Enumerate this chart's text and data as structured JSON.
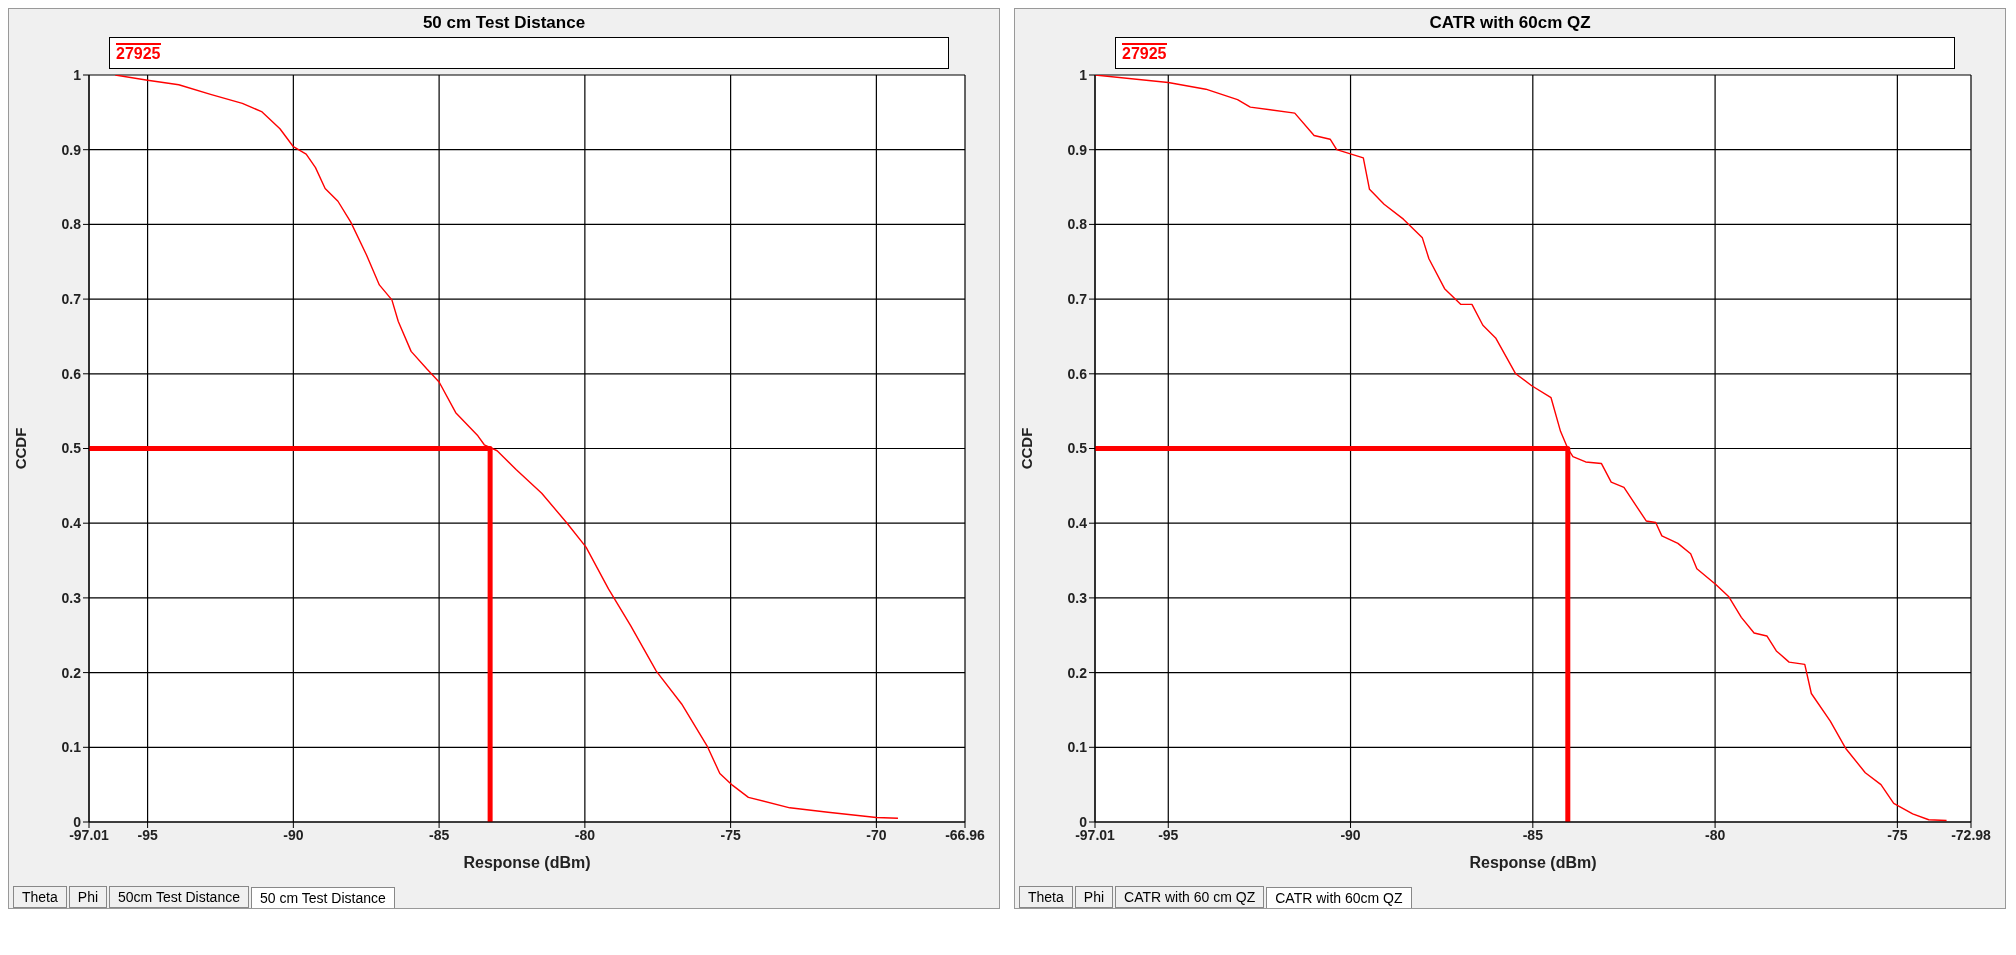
{
  "chart_data": [
    {
      "type": "line",
      "title": "50 cm Test Distance",
      "xlabel": "Response (dBm)",
      "ylabel": "CCDF",
      "xlim": [
        -97.01,
        -66.96
      ],
      "xticks": [
        -97.01,
        -95,
        -90,
        -85,
        -80,
        -75,
        -70,
        -66.96
      ],
      "ylim": [
        0,
        1
      ],
      "yticks": [
        0,
        0.1,
        0.2,
        0.3,
        0.4,
        0.5,
        0.6,
        0.7,
        0.8,
        0.9,
        1
      ],
      "grid": true,
      "legend": "top",
      "series": [
        {
          "name": "27925",
          "color": "#ff0000",
          "x": [
            -96.11,
            -95,
            -93.93,
            -92.84,
            -91.75,
            -91.09,
            -90.46,
            -90,
            -89.56,
            -89.24,
            -88.91,
            -88.47,
            -88.03,
            -87.49,
            -87.05,
            -86.62,
            -86.4,
            -85.96,
            -85.41,
            -85,
            -84.43,
            -83.67,
            -83.45,
            -83.01,
            -82.36,
            -81.48,
            -80.61,
            -79.96,
            -79.19,
            -78.43,
            -77.55,
            -76.68,
            -75.81,
            -75.37,
            -74.93,
            -74.39,
            -72.97,
            -71.66,
            -70,
            -69.26
          ],
          "values": [
            1,
            0.993,
            0.987,
            0.974,
            0.962,
            0.951,
            0.928,
            0.904,
            0.894,
            0.876,
            0.848,
            0.831,
            0.803,
            0.759,
            0.719,
            0.699,
            0.67,
            0.63,
            0.606,
            0.589,
            0.548,
            0.517,
            0.505,
            0.497,
            0.472,
            0.44,
            0.4,
            0.368,
            0.312,
            0.263,
            0.202,
            0.158,
            0.102,
            0.065,
            0.049,
            0.033,
            0.019,
            0.013,
            0.006,
            0.005
          ]
        },
        {
          "color": "#ff0000",
          "x": [
            -97.01,
            -83.25,
            -83.25
          ],
          "values": [
            0.5,
            0.5,
            0
          ]
        }
      ],
      "annotations": [
        "Theta",
        "Phi",
        "50cm Test Distance",
        "50 cm Test Distance"
      ]
    },
    {
      "type": "line",
      "title": "CATR with 60cm QZ",
      "xlabel": "Response (dBm)",
      "ylabel": "CCDF",
      "xlim": [
        -97.01,
        -72.98
      ],
      "xticks": [
        -97.01,
        -95,
        -90,
        -85,
        -80,
        -75,
        -72.98
      ],
      "ylim": [
        0,
        1
      ],
      "yticks": [
        0,
        0.1,
        0.2,
        0.3,
        0.4,
        0.5,
        0.6,
        0.7,
        0.8,
        0.9,
        1
      ],
      "grid": true,
      "legend": "top",
      "series": [
        {
          "name": "27925",
          "color": "#ff0000",
          "x": [
            -97.01,
            -95,
            -93.97,
            -93.1,
            -92.75,
            -91.53,
            -91,
            -90.56,
            -90.38,
            -89.65,
            -89.48,
            -89.08,
            -88.55,
            -88.03,
            -87.85,
            -87.42,
            -86.98,
            -86.67,
            -86.37,
            -86.02,
            -85.47,
            -85.03,
            -84.5,
            -84.24,
            -84.04,
            -83.9,
            -83.55,
            -83.12,
            -82.85,
            -82.5,
            -81.89,
            -81.63,
            -81.46,
            -81.02,
            -80.67,
            -80.5,
            -79.98,
            -79.63,
            -79.28,
            -78.93,
            -78.58,
            -78.32,
            -77.97,
            -77.54,
            -77.36,
            -76.84,
            -76.41,
            -75.88,
            -75.45,
            -75.1,
            -74.58,
            -74.14,
            -73.65
          ],
          "values": [
            1,
            0.99,
            0.981,
            0.967,
            0.957,
            0.949,
            0.919,
            0.914,
            0.9,
            0.889,
            0.847,
            0.827,
            0.807,
            0.782,
            0.754,
            0.714,
            0.693,
            0.693,
            0.665,
            0.648,
            0.6,
            0.584,
            0.568,
            0.523,
            0.5,
            0.489,
            0.482,
            0.48,
            0.455,
            0.448,
            0.403,
            0.401,
            0.383,
            0.373,
            0.359,
            0.339,
            0.318,
            0.302,
            0.274,
            0.253,
            0.249,
            0.229,
            0.214,
            0.211,
            0.172,
            0.135,
            0.098,
            0.066,
            0.05,
            0.025,
            0.011,
            0.003,
            0.002
          ]
        },
        {
          "color": "#ff0000",
          "x": [
            -97.01,
            -84.04,
            -84.04
          ],
          "values": [
            0.5,
            0.5,
            0
          ]
        }
      ],
      "annotations": [
        "Theta",
        "Phi",
        "CATR with 60 cm QZ",
        "CATR with 60cm QZ"
      ]
    }
  ]
}
